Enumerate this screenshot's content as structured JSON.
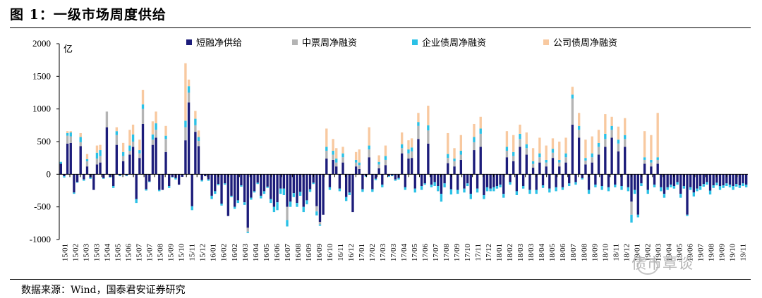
{
  "figure": {
    "title": "图 1：一级市场周度供给",
    "source": "数据来源：Wind，国泰君安证券研究",
    "watermark": "债市覃谈"
  },
  "colors": {
    "short": "#1c1c7a",
    "medium": "#b4b4b4",
    "corp": "#2bc1e6",
    "company": "#f8c9a0",
    "axis": "#000000"
  },
  "chart_data": {
    "type": "bar",
    "stacked": true,
    "title": "一级市场周度供给",
    "ylabel": "亿",
    "ylim": [
      -1000,
      2000
    ],
    "yticks": [
      -1000,
      -500,
      0,
      500,
      1000,
      1500,
      2000
    ],
    "legend_position": "top",
    "x_tick_labels": [
      "15/01",
      "15/02",
      "15/03",
      "15/03",
      "15/04",
      "15/05",
      "15/06",
      "15/07",
      "15/07",
      "15/08",
      "15/09",
      "15/10",
      "15/11",
      "15/12",
      "16/01",
      "16/02",
      "16/02",
      "16/03",
      "16/04",
      "16/05",
      "16/06",
      "16/07",
      "16/08",
      "16/09",
      "16/09",
      "16/10",
      "16/11",
      "16/12",
      "17/01",
      "17/02",
      "17/03",
      "17/03",
      "17/04",
      "17/05",
      "17/06",
      "17/07",
      "17/08",
      "17/09",
      "17/10",
      "17/11",
      "17/12",
      "18/01",
      "18/02",
      "18/03",
      "18/03",
      "18/04",
      "18/05",
      "18/06",
      "18/07",
      "18/08",
      "18/09",
      "18/10",
      "18/11",
      "18/12",
      "19/01",
      "19/02",
      "19/03",
      "19/04",
      "19/05",
      "19/06",
      "19/07",
      "19/08",
      "19/09",
      "19/10",
      "19/11"
    ],
    "series": [
      {
        "key": "short",
        "name": "短融净供给",
        "values": [
          160,
          -30,
          470,
          480,
          -280,
          -120,
          430,
          -80,
          120,
          -50,
          -240,
          150,
          180,
          -60,
          720,
          -40,
          -180,
          450,
          -20,
          200,
          -20,
          300,
          420,
          -380,
          250,
          770,
          -230,
          -110,
          450,
          560,
          -240,
          -240,
          340,
          -180,
          -40,
          -60,
          -160,
          -40,
          520,
          1100,
          -490,
          650,
          430,
          -90,
          -30,
          -80,
          -330,
          -260,
          -150,
          -450,
          -140,
          -640,
          -330,
          -500,
          -400,
          -170,
          -430,
          -820,
          -360,
          -260,
          -130,
          -330,
          -260,
          -190,
          -380,
          -500,
          -430,
          -220,
          -220,
          -500,
          -420,
          -290,
          -440,
          -270,
          -500,
          -400,
          -230,
          -130,
          -490,
          -730,
          -620,
          240,
          -200,
          220,
          120,
          -220,
          180,
          -350,
          -280,
          -580,
          120,
          80,
          -230,
          -30,
          260,
          -230,
          -70,
          90,
          -160,
          140,
          -30,
          -20,
          -80,
          -60,
          320,
          -200,
          240,
          250,
          -220,
          540,
          -180,
          -140,
          470,
          -160,
          -120,
          -180,
          -300,
          -140,
          170,
          -230,
          120,
          -240,
          220,
          -220,
          -140,
          -300,
          370,
          -220,
          420,
          -320,
          -200,
          -220,
          -200,
          -180,
          -160,
          -300,
          260,
          -120,
          200,
          -260,
          420,
          -180,
          300,
          -240,
          100,
          -240,
          180,
          -170,
          120,
          -220,
          250,
          -200,
          120,
          -200,
          180,
          -140,
          760,
          -120,
          560,
          -60,
          150,
          -240,
          180,
          -160,
          300,
          -180,
          420,
          -200,
          560,
          -160,
          350,
          -180,
          420,
          -200,
          -420,
          -240,
          -620,
          -140,
          160,
          -240,
          120,
          -160,
          160,
          -200,
          -300,
          -200,
          -160,
          -180,
          -120,
          -300,
          -180,
          -620,
          -200,
          -280,
          -220,
          -180,
          -150,
          -120,
          -250,
          -170,
          -130,
          -180,
          -170,
          -140,
          -160,
          -180,
          -150,
          -170,
          -140,
          -160
        ],
        "_note": "placeholder"
      },
      {
        "key": "medium",
        "name": "中票周净融资",
        "values": []
      },
      {
        "key": "corp",
        "name": "企业债周净融资",
        "values": []
      },
      {
        "key": "company",
        "name": "公司债周净融资",
        "values": []
      }
    ],
    "weeks": [
      [
        160,
        0,
        30,
        0
      ],
      [
        -30,
        0,
        -20,
        0
      ],
      [
        470,
        120,
        40,
        30
      ],
      [
        480,
        100,
        60,
        20
      ],
      [
        -280,
        0,
        -20,
        0
      ],
      [
        -120,
        0,
        -10,
        0
      ],
      [
        430,
        60,
        80,
        60
      ],
      [
        -80,
        0,
        -20,
        0
      ],
      [
        120,
        80,
        30,
        80
      ],
      [
        -50,
        0,
        -20,
        0
      ],
      [
        -240,
        0,
        0,
        0
      ],
      [
        150,
        90,
        90,
        110
      ],
      [
        180,
        100,
        90,
        80
      ],
      [
        -60,
        0,
        -10,
        0
      ],
      [
        720,
        240,
        0,
        0
      ],
      [
        -40,
        0,
        -10,
        0
      ],
      [
        -180,
        0,
        -30,
        0
      ],
      [
        450,
        150,
        60,
        60
      ],
      [
        -20,
        0,
        -10,
        0
      ],
      [
        200,
        80,
        60,
        140
      ],
      [
        -20,
        0,
        -10,
        0
      ],
      [
        300,
        60,
        80,
        240
      ],
      [
        420,
        80,
        110,
        150
      ],
      [
        -380,
        0,
        -60,
        0
      ],
      [
        250,
        70,
        50,
        160
      ],
      [
        770,
        230,
        70,
        220
      ],
      [
        -230,
        0,
        -20,
        0
      ],
      [
        -110,
        0,
        -10,
        0
      ],
      [
        450,
        80,
        80,
        200
      ],
      [
        560,
        120,
        100,
        180
      ],
      [
        -240,
        0,
        -20,
        0
      ],
      [
        -240,
        0,
        0,
        0
      ],
      [
        340,
        200,
        50,
        150
      ],
      [
        -180,
        0,
        -30,
        0
      ],
      [
        -40,
        0,
        -10,
        0
      ],
      [
        -60,
        0,
        -20,
        0
      ],
      [
        -160,
        0,
        0,
        0
      ],
      [
        -40,
        0,
        0,
        0
      ],
      [
        520,
        200,
        100,
        880
      ],
      [
        1100,
        150,
        100,
        100
      ],
      [
        -490,
        0,
        -60,
        0
      ],
      [
        650,
        100,
        100,
        120
      ],
      [
        430,
        80,
        60,
        100
      ],
      [
        -90,
        0,
        -20,
        0
      ],
      [
        -30,
        0,
        0,
        0
      ],
      [
        -80,
        0,
        -20,
        0
      ],
      [
        -330,
        0,
        -50,
        0
      ],
      [
        -260,
        0,
        -40,
        0
      ],
      [
        -150,
        0,
        -20,
        0
      ],
      [
        -450,
        0,
        -30,
        0
      ],
      [
        -140,
        0,
        -20,
        0
      ],
      [
        -640,
        0,
        0,
        0
      ],
      [
        -330,
        0,
        -20,
        0
      ],
      [
        -500,
        0,
        -30,
        0
      ],
      [
        -400,
        0,
        -40,
        0
      ],
      [
        -170,
        0,
        -20,
        0
      ],
      [
        -430,
        0,
        -40,
        0
      ],
      [
        -820,
        -60,
        -20,
        0
      ],
      [
        -360,
        0,
        -30,
        0
      ],
      [
        -260,
        0,
        -20,
        0
      ],
      [
        -130,
        0,
        -20,
        0
      ],
      [
        -330,
        0,
        -40,
        0
      ],
      [
        -260,
        0,
        -40,
        0
      ],
      [
        -190,
        0,
        -20,
        0
      ],
      [
        -380,
        0,
        -60,
        0
      ],
      [
        -500,
        0,
        -80,
        0
      ],
      [
        -430,
        0,
        -120,
        0
      ],
      [
        -220,
        0,
        -80,
        0
      ],
      [
        -220,
        0,
        -100,
        0
      ],
      [
        -500,
        -200,
        -100,
        0
      ],
      [
        -420,
        0,
        -80,
        0
      ],
      [
        -290,
        0,
        -60,
        0
      ],
      [
        -440,
        0,
        -60,
        0
      ],
      [
        -270,
        0,
        -60,
        0
      ],
      [
        -500,
        0,
        -80,
        0
      ],
      [
        -400,
        0,
        -60,
        0
      ],
      [
        -230,
        0,
        -40,
        0
      ],
      [
        -130,
        0,
        -20,
        0
      ],
      [
        -490,
        -80,
        -60,
        0
      ],
      [
        -730,
        -40,
        -20,
        0
      ],
      [
        -620,
        0,
        0,
        0
      ],
      [
        240,
        120,
        60,
        280
      ],
      [
        -200,
        0,
        -40,
        0
      ],
      [
        220,
        80,
        60,
        180
      ],
      [
        120,
        60,
        60,
        160
      ],
      [
        -220,
        0,
        -40,
        0
      ],
      [
        180,
        80,
        60,
        100
      ],
      [
        -350,
        0,
        -60,
        0
      ],
      [
        -280,
        0,
        -40,
        0
      ],
      [
        -580,
        0,
        0,
        0
      ],
      [
        120,
        60,
        40,
        120
      ],
      [
        80,
        60,
        40,
        200
      ],
      [
        -230,
        0,
        -40,
        0
      ],
      [
        -30,
        0,
        -10,
        0
      ],
      [
        260,
        120,
        60,
        280
      ],
      [
        -230,
        0,
        -40,
        0
      ],
      [
        -70,
        0,
        -20,
        0
      ],
      [
        90,
        60,
        40,
        100
      ],
      [
        -160,
        0,
        -40,
        0
      ],
      [
        140,
        80,
        60,
        160
      ],
      [
        -30,
        0,
        -10,
        0
      ],
      [
        -20,
        0,
        -10,
        0
      ],
      [
        -80,
        0,
        -20,
        0
      ],
      [
        -60,
        0,
        -20,
        0
      ],
      [
        320,
        80,
        60,
        180
      ],
      [
        -200,
        0,
        -40,
        0
      ],
      [
        240,
        80,
        60,
        140
      ],
      [
        250,
        100,
        60,
        140
      ],
      [
        -220,
        0,
        -60,
        0
      ],
      [
        540,
        200,
        60,
        140
      ],
      [
        -180,
        0,
        -60,
        0
      ],
      [
        -140,
        0,
        -20,
        0
      ],
      [
        470,
        200,
        80,
        300
      ],
      [
        -160,
        0,
        -40,
        0
      ],
      [
        -120,
        0,
        -60,
        0
      ],
      [
        -180,
        0,
        -80,
        0
      ],
      [
        -300,
        0,
        -120,
        0
      ],
      [
        -140,
        0,
        -60,
        0
      ],
      [
        170,
        80,
        60,
        320
      ],
      [
        -230,
        0,
        -80,
        0
      ],
      [
        120,
        80,
        40,
        160
      ],
      [
        -240,
        0,
        -60,
        0
      ],
      [
        220,
        80,
        60,
        240
      ],
      [
        -220,
        0,
        -60,
        0
      ],
      [
        -140,
        0,
        -40,
        0
      ],
      [
        -300,
        0,
        -80,
        0
      ],
      [
        370,
        120,
        80,
        200
      ],
      [
        -220,
        0,
        -60,
        0
      ],
      [
        420,
        200,
        80,
        180
      ],
      [
        -320,
        0,
        -60,
        0
      ],
      [
        -200,
        0,
        -60,
        0
      ],
      [
        -220,
        0,
        -40,
        0
      ],
      [
        -200,
        0,
        -60,
        0
      ],
      [
        -180,
        0,
        -40,
        0
      ],
      [
        -160,
        0,
        -40,
        0
      ],
      [
        -300,
        0,
        -60,
        0
      ],
      [
        260,
        100,
        60,
        240
      ],
      [
        -120,
        0,
        -40,
        0
      ],
      [
        200,
        80,
        60,
        260
      ],
      [
        -260,
        0,
        -60,
        0
      ],
      [
        420,
        120,
        80,
        140
      ],
      [
        -180,
        0,
        -40,
        0
      ],
      [
        300,
        100,
        60,
        180
      ],
      [
        -240,
        0,
        -60,
        0
      ],
      [
        100,
        60,
        40,
        200
      ],
      [
        -240,
        0,
        -60,
        0
      ],
      [
        180,
        80,
        60,
        240
      ],
      [
        -170,
        0,
        -40,
        0
      ],
      [
        120,
        60,
        40,
        220
      ],
      [
        -220,
        0,
        -60,
        0
      ],
      [
        250,
        80,
        60,
        160
      ],
      [
        -200,
        0,
        -60,
        0
      ],
      [
        120,
        60,
        40,
        280
      ],
      [
        -200,
        0,
        -40,
        0
      ],
      [
        180,
        80,
        60,
        240
      ],
      [
        -140,
        0,
        -40,
        0
      ],
      [
        760,
        400,
        60,
        120
      ],
      [
        -120,
        0,
        -40,
        0
      ],
      [
        560,
        120,
        60,
        200
      ],
      [
        -60,
        0,
        -20,
        0
      ],
      [
        150,
        60,
        40,
        280
      ],
      [
        -240,
        0,
        -60,
        0
      ],
      [
        180,
        80,
        60,
        260
      ],
      [
        -160,
        0,
        -40,
        0
      ],
      [
        300,
        120,
        60,
        200
      ],
      [
        -180,
        0,
        -60,
        0
      ],
      [
        420,
        120,
        80,
        300
      ],
      [
        -200,
        0,
        -60,
        0
      ],
      [
        560,
        120,
        60,
        140
      ],
      [
        -160,
        0,
        -40,
        0
      ],
      [
        350,
        120,
        60,
        200
      ],
      [
        -180,
        0,
        -60,
        0
      ],
      [
        420,
        120,
        60,
        260
      ],
      [
        -200,
        0,
        -60,
        0
      ],
      [
        -420,
        -200,
        -120,
        0
      ],
      [
        -240,
        0,
        -60,
        0
      ],
      [
        -620,
        0,
        -40,
        0
      ],
      [
        -140,
        0,
        -40,
        0
      ],
      [
        160,
        60,
        40,
        400
      ],
      [
        -240,
        0,
        -60,
        0
      ],
      [
        120,
        60,
        40,
        380
      ],
      [
        -160,
        0,
        -40,
        0
      ],
      [
        160,
        60,
        40,
        680
      ],
      [
        -200,
        0,
        -60,
        0
      ],
      [
        -300,
        0,
        -60,
        0
      ],
      [
        -200,
        0,
        -40,
        0
      ],
      [
        -160,
        0,
        -40,
        0
      ],
      [
        -180,
        0,
        -40,
        0
      ],
      [
        -120,
        0,
        -40,
        0
      ],
      [
        -300,
        0,
        -60,
        0
      ],
      [
        -180,
        0,
        -40,
        0
      ],
      [
        -620,
        0,
        -20,
        0
      ],
      [
        -200,
        0,
        -40,
        0
      ],
      [
        -280,
        0,
        -60,
        0
      ],
      [
        -220,
        0,
        -40,
        0
      ],
      [
        -180,
        0,
        -60,
        0
      ],
      [
        -150,
        0,
        -40,
        0
      ],
      [
        -120,
        0,
        -40,
        0
      ],
      [
        -250,
        0,
        -60,
        0
      ],
      [
        -170,
        0,
        -40,
        0
      ],
      [
        -130,
        0,
        -40,
        0
      ],
      [
        -180,
        0,
        -60,
        0
      ],
      [
        -170,
        0,
        -40,
        0
      ],
      [
        -140,
        0,
        -40,
        0
      ],
      [
        -160,
        0,
        -40,
        0
      ],
      [
        -180,
        0,
        -60,
        0
      ],
      [
        -150,
        0,
        -40,
        0
      ],
      [
        -170,
        0,
        -40,
        0
      ],
      [
        -140,
        0,
        -40,
        0
      ],
      [
        -160,
        0,
        -40,
        0
      ]
    ]
  }
}
